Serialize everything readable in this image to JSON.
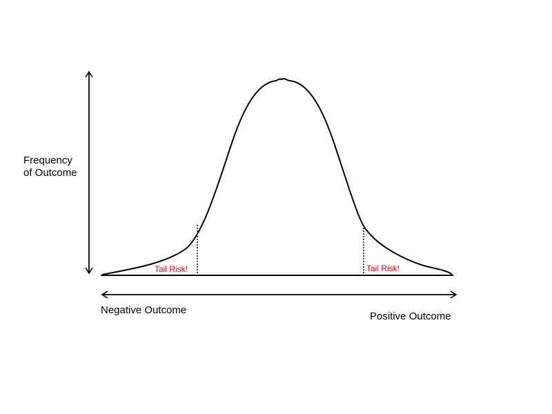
{
  "y_axis_label": {
    "line1": "Frequency",
    "line2": "of Outcome"
  },
  "x_axis_labels": {
    "negative": "Negative Outcome",
    "positive": "Positive Outcome"
  },
  "tail_labels": {
    "left": "Tail Risk!",
    "right": "Tail Risk!"
  },
  "colors": {
    "curve": "#000000",
    "axes": "#000000",
    "tail_label": "#e00000"
  }
}
